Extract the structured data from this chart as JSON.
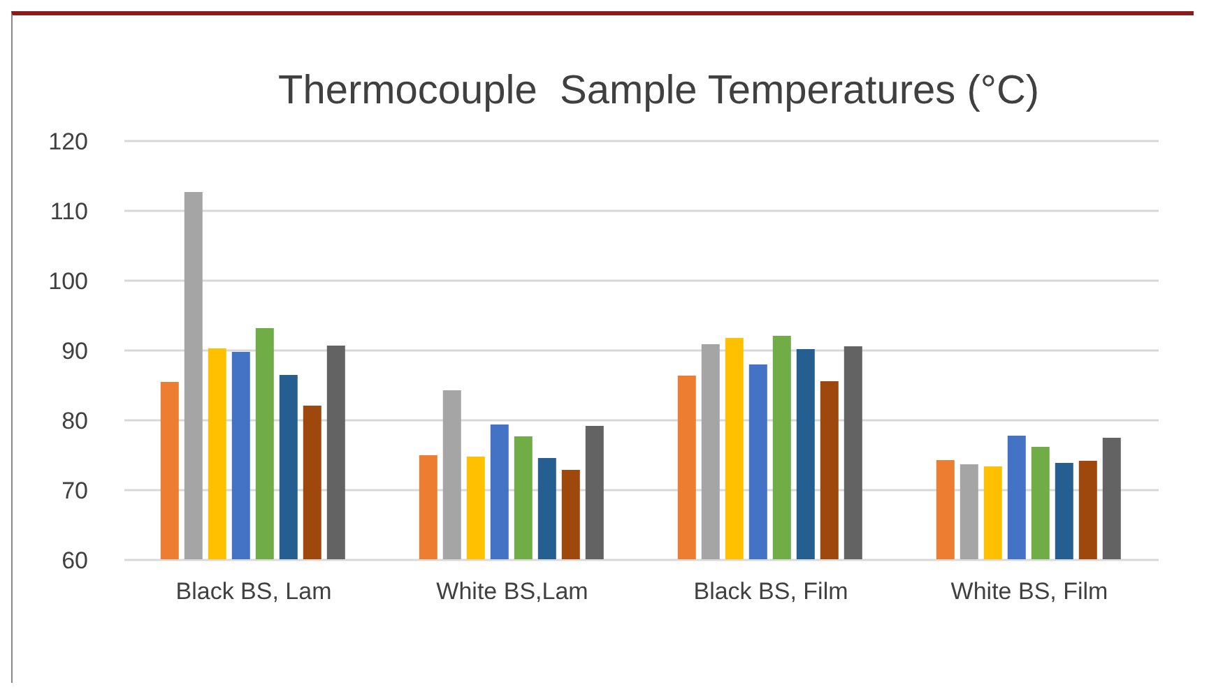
{
  "chart_data": {
    "type": "bar",
    "title": "Thermocouple  Sample Temperatures (°C)",
    "categories": [
      "Black BS, Lam",
      "White BS,Lam",
      "Black BS, Film",
      "White BS, Film"
    ],
    "series": [
      {
        "color": "#ed7d31",
        "values": [
          85.5,
          75.0,
          86.4,
          74.3
        ]
      },
      {
        "color": "#a5a5a5",
        "values": [
          112.7,
          84.3,
          90.9,
          73.7
        ]
      },
      {
        "color": "#ffc000",
        "values": [
          90.3,
          74.8,
          91.8,
          73.4
        ]
      },
      {
        "color": "#4472c4",
        "values": [
          89.8,
          79.4,
          88.0,
          77.8
        ]
      },
      {
        "color": "#70ad47",
        "values": [
          93.2,
          77.7,
          92.1,
          76.2
        ]
      },
      {
        "color": "#255e91",
        "values": [
          86.5,
          74.6,
          90.2,
          73.9
        ]
      },
      {
        "color": "#9e480e",
        "values": [
          82.1,
          72.9,
          85.6,
          74.2
        ]
      },
      {
        "color": "#636363",
        "values": [
          90.7,
          79.2,
          90.6,
          77.5
        ]
      }
    ],
    "ylim": [
      60,
      120
    ],
    "yticks": [
      60,
      70,
      80,
      90,
      100,
      110,
      120
    ],
    "grid": "y",
    "legend": false
  }
}
